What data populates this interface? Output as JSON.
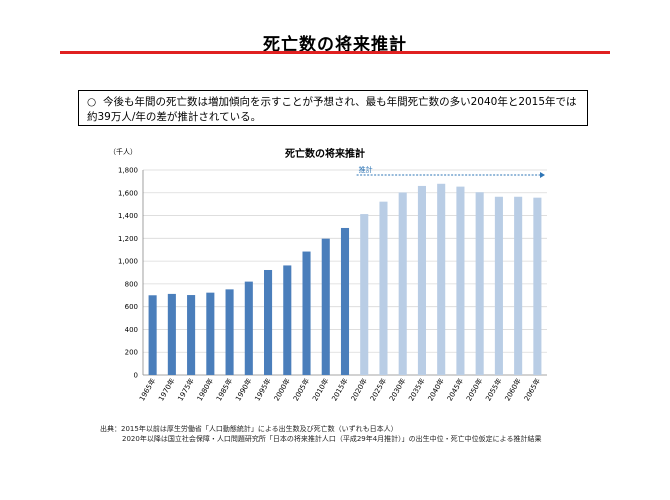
{
  "page": {
    "title": "死亡数の将来推計",
    "notice_bullet": "○",
    "notice_text": "今後も年間の死亡数は増加傾向を示すことが予想され、最も年間死亡数の多い2040年と2015年では約39万人/年の差が推計されている。",
    "source_line1": "出典：2015年以前は厚生労働省「人口動態統計」による出生数及び死亡数（いずれも日本人）",
    "source_line2": "2020年以降は国立社会保障・人口問題研究所「日本の将来推計人口（平成29年4月推計）」の出生中位・死亡中位仮定による推計結果"
  },
  "colors": {
    "accent_rule": "#e02020",
    "actual_bar": "#4a7ebb",
    "projected_bar": "#b9cde5",
    "projection_arrow": "#2e75b6"
  },
  "chart_data": {
    "type": "bar",
    "title": "死亡数の将来推計",
    "ylabel": "（千人）",
    "xlabel": "",
    "ylim": [
      0,
      1800
    ],
    "yticks": [
      0,
      200,
      400,
      600,
      800,
      "1,000",
      "1,200",
      "1,400",
      "1,600",
      "1,800"
    ],
    "grid": true,
    "projection_label": "推計",
    "projection_start_index": 11,
    "categories": [
      "1965年",
      "1970年",
      "1975年",
      "1980年",
      "1985年",
      "1990年",
      "1995年",
      "2000年",
      "2005年",
      "2010年",
      "2015年",
      "2020年",
      "2025年",
      "2030年",
      "2035年",
      "2040年",
      "2045年",
      "2050年",
      "2055年",
      "2060年",
      "2065年"
    ],
    "values": [
      700,
      712,
      702,
      723,
      752,
      820,
      922,
      962,
      1084,
      1197,
      1291,
      1413,
      1522,
      1603,
      1660,
      1679,
      1654,
      1605,
      1565,
      1565,
      1557
    ]
  }
}
